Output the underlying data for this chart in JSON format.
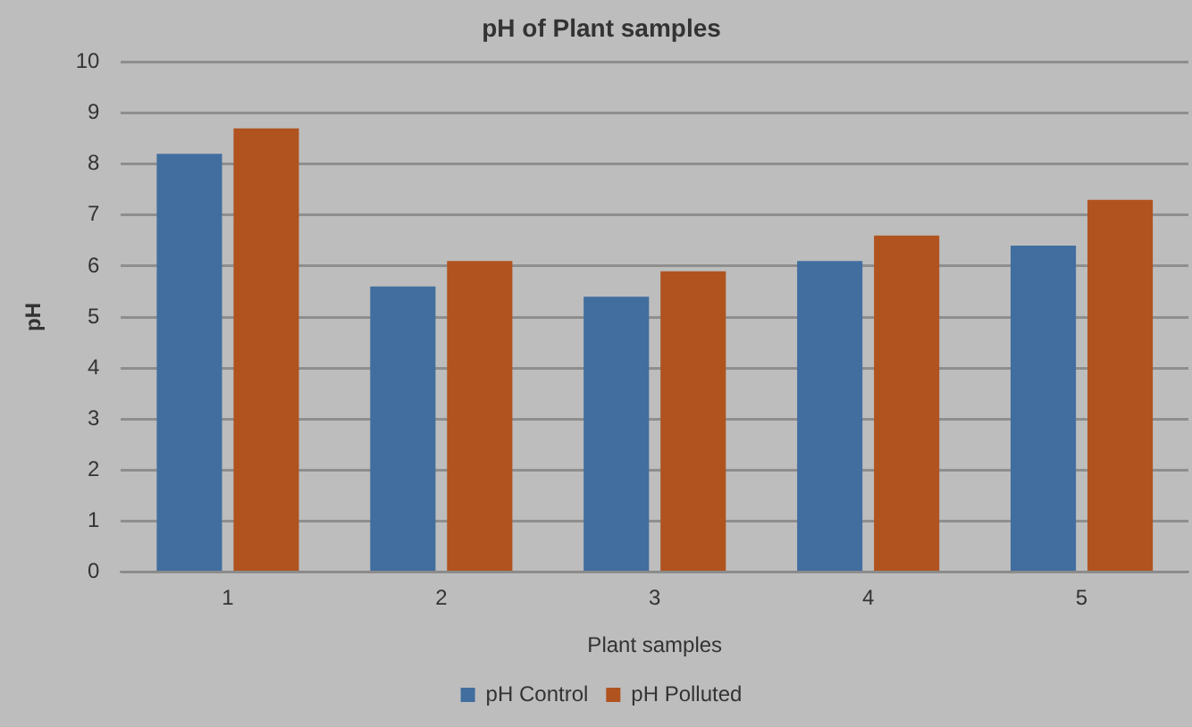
{
  "chart_data": {
    "type": "bar",
    "title": "pH of Plant samples",
    "xlabel": "Plant samples",
    "ylabel": "pH",
    "categories": [
      "1",
      "2",
      "3",
      "4",
      "5"
    ],
    "series": [
      {
        "name": "pH Control",
        "color": "#416e9f",
        "values": [
          8.2,
          5.6,
          5.4,
          6.1,
          6.4
        ]
      },
      {
        "name": "pH Polluted",
        "color": "#b0531f",
        "values": [
          8.7,
          6.1,
          5.9,
          6.6,
          7.3
        ]
      }
    ],
    "ylim": [
      0,
      10
    ],
    "yticks": [
      0,
      1,
      2,
      3,
      4,
      5,
      6,
      7,
      8,
      9,
      10
    ],
    "grid": "y",
    "legend": "bottom"
  }
}
